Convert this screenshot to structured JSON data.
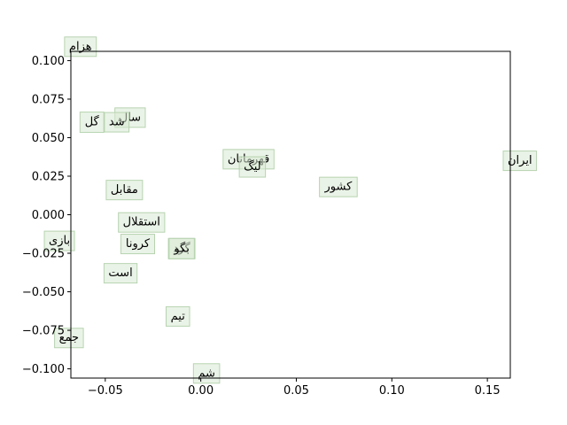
{
  "chart_data": {
    "type": "scatter",
    "title": "",
    "xlabel": "",
    "ylabel": "",
    "xlim": [
      -0.068,
      0.162
    ],
    "ylim": [
      -0.106,
      0.106
    ],
    "grid": false,
    "legend": "none",
    "colors": {
      "label_box": "#d9ead3",
      "label_box_edge": "#b7d3b0",
      "axes": "#000000"
    },
    "x_ticks": [
      {
        "value": -0.05,
        "label": "−0.05"
      },
      {
        "value": 0.0,
        "label": "0.00"
      },
      {
        "value": 0.05,
        "label": "0.05"
      },
      {
        "value": 0.1,
        "label": "0.10"
      },
      {
        "value": 0.15,
        "label": "0.15"
      }
    ],
    "y_ticks": [
      {
        "value": 0.1,
        "label": "0.100"
      },
      {
        "value": 0.075,
        "label": "0.075"
      },
      {
        "value": 0.05,
        "label": "0.050"
      },
      {
        "value": 0.025,
        "label": "0.025"
      },
      {
        "value": 0.0,
        "label": "0.000"
      },
      {
        "value": -0.025,
        "label": "−0.025"
      },
      {
        "value": -0.05,
        "label": "−0.050"
      },
      {
        "value": -0.075,
        "label": "−0.075"
      },
      {
        "value": -0.1,
        "label": "−0.100"
      }
    ],
    "points": [
      {
        "label": "هزام",
        "x": -0.063,
        "y": 0.109
      },
      {
        "label": "سال",
        "x": -0.037,
        "y": 0.063
      },
      {
        "label": "گل",
        "x": -0.057,
        "y": 0.06
      },
      {
        "label": "شد",
        "x": -0.044,
        "y": 0.06
      },
      {
        "label": "قهرمانان",
        "x": 0.025,
        "y": 0.036
      },
      {
        "label": "لیگ",
        "x": 0.027,
        "y": 0.031
      },
      {
        "label": "ایران",
        "x": 0.167,
        "y": 0.035
      },
      {
        "label": "کشور",
        "x": 0.072,
        "y": 0.018
      },
      {
        "label": "مقابل",
        "x": -0.04,
        "y": 0.016
      },
      {
        "label": "استقلال",
        "x": -0.031,
        "y": -0.005
      },
      {
        "label": "بازی",
        "x": -0.074,
        "y": -0.017
      },
      {
        "label": "کرونا",
        "x": -0.033,
        "y": -0.019
      },
      {
        "label": "گرد",
        "x": -0.01,
        "y": -0.022
      },
      {
        "label": "بگو",
        "x": -0.01,
        "y": -0.022
      },
      {
        "label": "است",
        "x": -0.042,
        "y": -0.038
      },
      {
        "label": "تیم",
        "x": -0.012,
        "y": -0.066
      },
      {
        "label": "جمع",
        "x": -0.069,
        "y": -0.08
      },
      {
        "label": "شم",
        "x": 0.003,
        "y": -0.103
      }
    ]
  }
}
